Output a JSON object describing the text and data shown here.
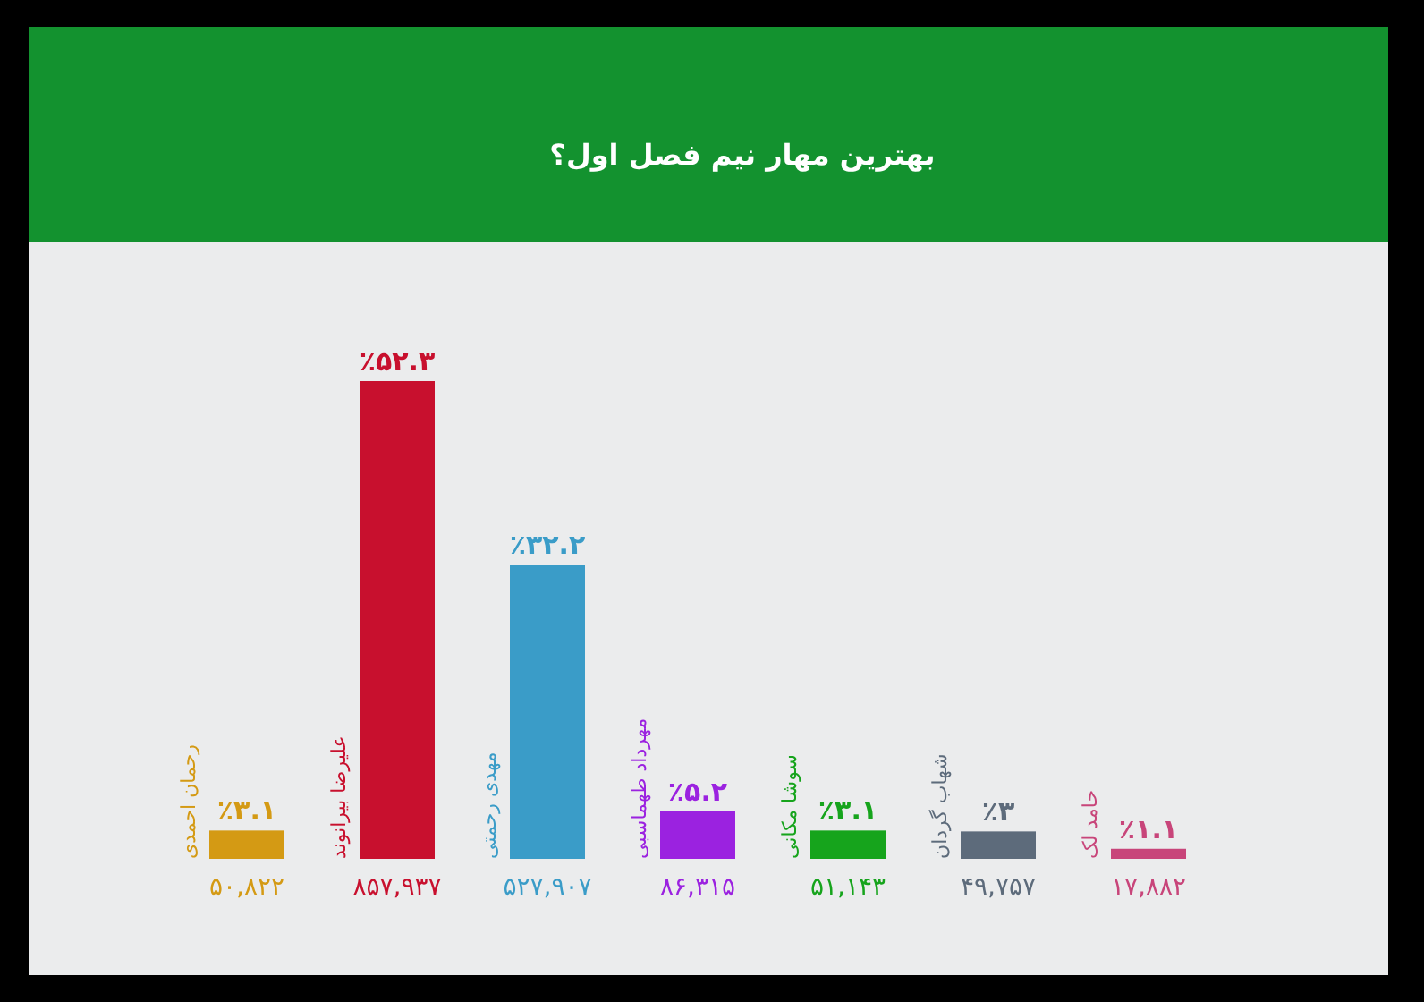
{
  "chart_data": {
    "type": "bar",
    "title": "بهترین مهار نیم فصل اول؟",
    "categories": [
      "رحمان احمدی",
      "علیرضا بیرانوند",
      "مهدی رحمتی",
      "مهرداد طهماسبی",
      "سوشا مکانی",
      "شهاب گردان",
      "حامد لک"
    ],
    "values": [
      3.1,
      52.3,
      32.2,
      5.2,
      3.1,
      3,
      1.1
    ],
    "value_labels": [
      "٪۳.۱",
      "٪۵۲.۳",
      "٪۳۲.۲",
      "٪۵.۲",
      "٪۳.۱",
      "٪۳",
      "٪۱.۱"
    ],
    "colors": [
      "#d49a14",
      "#c8102e",
      "#3a9cc8",
      "#9b22e0",
      "#16a41c",
      "#5d6b7b",
      "#c8457a"
    ],
    "annotations": [
      "۵۰,۸۲۲",
      "۸۵۷,۹۳۷",
      "۵۲۷,۹۰۷",
      "۸۶,۳۱۵",
      "۵۱,۱۴۳",
      "۴۹,۷۵۷",
      "۱۷,۸۸۲"
    ]
  }
}
